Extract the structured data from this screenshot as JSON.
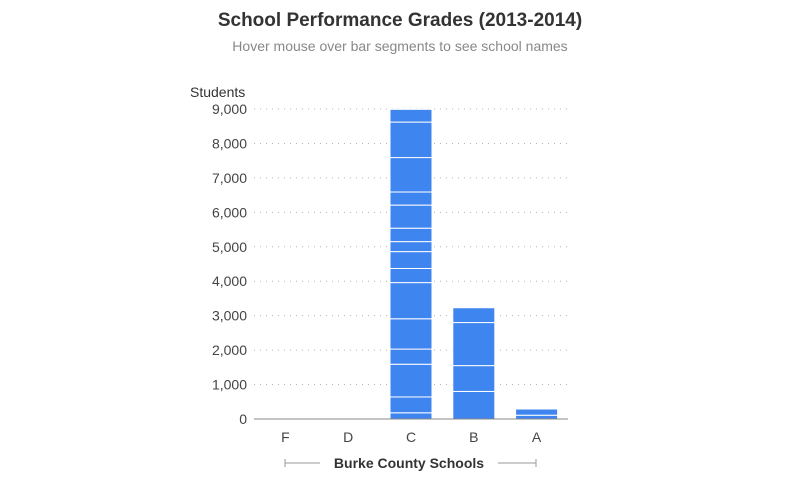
{
  "title": "School Performance Grades (2013-2014)",
  "subtitle": "Hover mouse over bar segments to see school names",
  "colors": {
    "bar": "#3f85f0",
    "segment_line": "#ffffff",
    "grid": "#b5b5b5",
    "axis": "#888888"
  },
  "chart_data": {
    "type": "bar",
    "stacked": true,
    "title": "School Performance Grades (2013-2014)",
    "subtitle": "Hover mouse over bar segments to see school names",
    "xlabel": "Burke County Schools",
    "ylabel": "Students",
    "ylim": [
      0,
      9000
    ],
    "yticks": [
      0,
      1000,
      2000,
      3000,
      4000,
      5000,
      6000,
      7000,
      8000,
      9000
    ],
    "ytick_labels": [
      "0",
      "1,000",
      "2,000",
      "3,000",
      "4,000",
      "5,000",
      "6,000",
      "7,000",
      "8,000",
      "9,000"
    ],
    "grid": true,
    "categories": [
      "F",
      "D",
      "C",
      "B",
      "A"
    ],
    "values": [
      0,
      0,
      8990,
      3230,
      290
    ],
    "segments": [
      [],
      [],
      [
        180,
        460,
        950,
        440,
        880,
        1050,
        410,
        490,
        290,
        390,
        670,
        380,
        1000,
        1030,
        370
      ],
      [
        800,
        750,
        1250,
        430
      ],
      [
        110,
        180
      ]
    ]
  }
}
